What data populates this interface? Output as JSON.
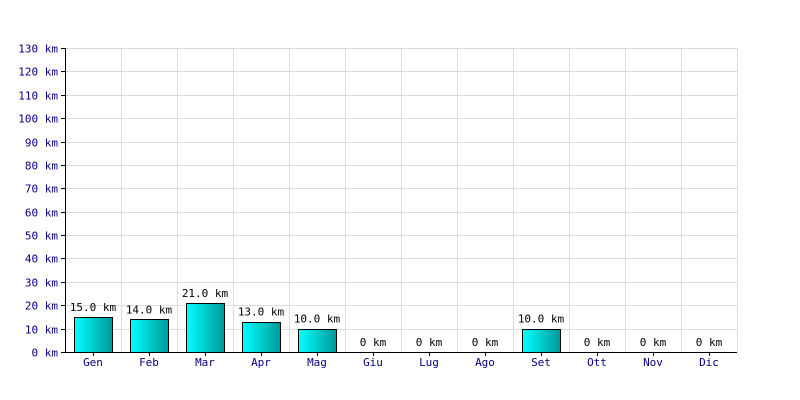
{
  "chart_data": {
    "type": "bar",
    "categories": [
      "Gen",
      "Feb",
      "Mar",
      "Apr",
      "Mag",
      "Giu",
      "Lug",
      "Ago",
      "Set",
      "Ott",
      "Nov",
      "Dic"
    ],
    "values": [
      15.0,
      14.0,
      21.0,
      13.0,
      10.0,
      0,
      0,
      0,
      10.0,
      0,
      0,
      0
    ],
    "data_labels": [
      "15.0 km",
      "14.0 km",
      "21.0 km",
      "13.0 km",
      "10.0 km",
      "0 km",
      "0 km",
      "0 km",
      "10.0 km",
      "0 km",
      "0 km",
      "0 km"
    ],
    "yticks": [
      0,
      10,
      20,
      30,
      40,
      50,
      60,
      70,
      80,
      90,
      100,
      110,
      120,
      130
    ],
    "ytick_labels": [
      "0 km",
      "10 km",
      "20 km",
      "30 km",
      "40 km",
      "50 km",
      "60 km",
      "70 km",
      "80 km",
      "90 km",
      "100 km",
      "110 km",
      "120 km",
      "130 km"
    ],
    "ylim": [
      0,
      130
    ],
    "title": "",
    "xlabel": "",
    "ylabel": "",
    "grid": true,
    "colors": {
      "bar_light": "#00ffff",
      "bar_dark": "#009999",
      "grid": "#dcdcdc",
      "tick_text": "#000080"
    }
  }
}
